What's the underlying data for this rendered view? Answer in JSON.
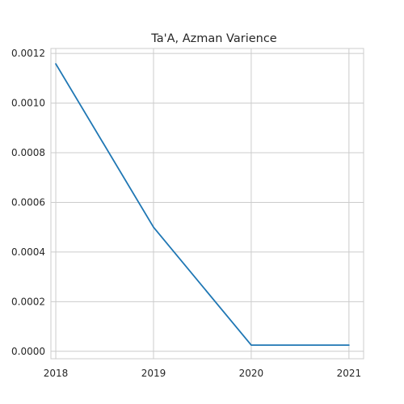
{
  "chart_data": {
    "type": "line",
    "title": "Ta'A, Azman Varience",
    "xlabel": "",
    "ylabel": "",
    "x": [
      2018,
      2019,
      2020,
      2021
    ],
    "x_tick_labels": [
      "2018",
      "2019",
      "2020",
      "2021"
    ],
    "y_ticks": [
      0.0,
      0.0002,
      0.0004,
      0.0006,
      0.0008,
      0.001,
      0.0012
    ],
    "y_tick_labels": [
      "0.0000",
      "0.0002",
      "0.0004",
      "0.0006",
      "0.0008",
      "0.0010",
      "0.0012"
    ],
    "xlim": [
      2017.95,
      2021.15
    ],
    "ylim": [
      -3e-05,
      0.00122
    ],
    "grid": true,
    "series": [
      {
        "values": [
          0.001158,
          0.0005,
          2.5e-05,
          2.5e-05
        ],
        "color": "#1f77b4"
      }
    ]
  }
}
